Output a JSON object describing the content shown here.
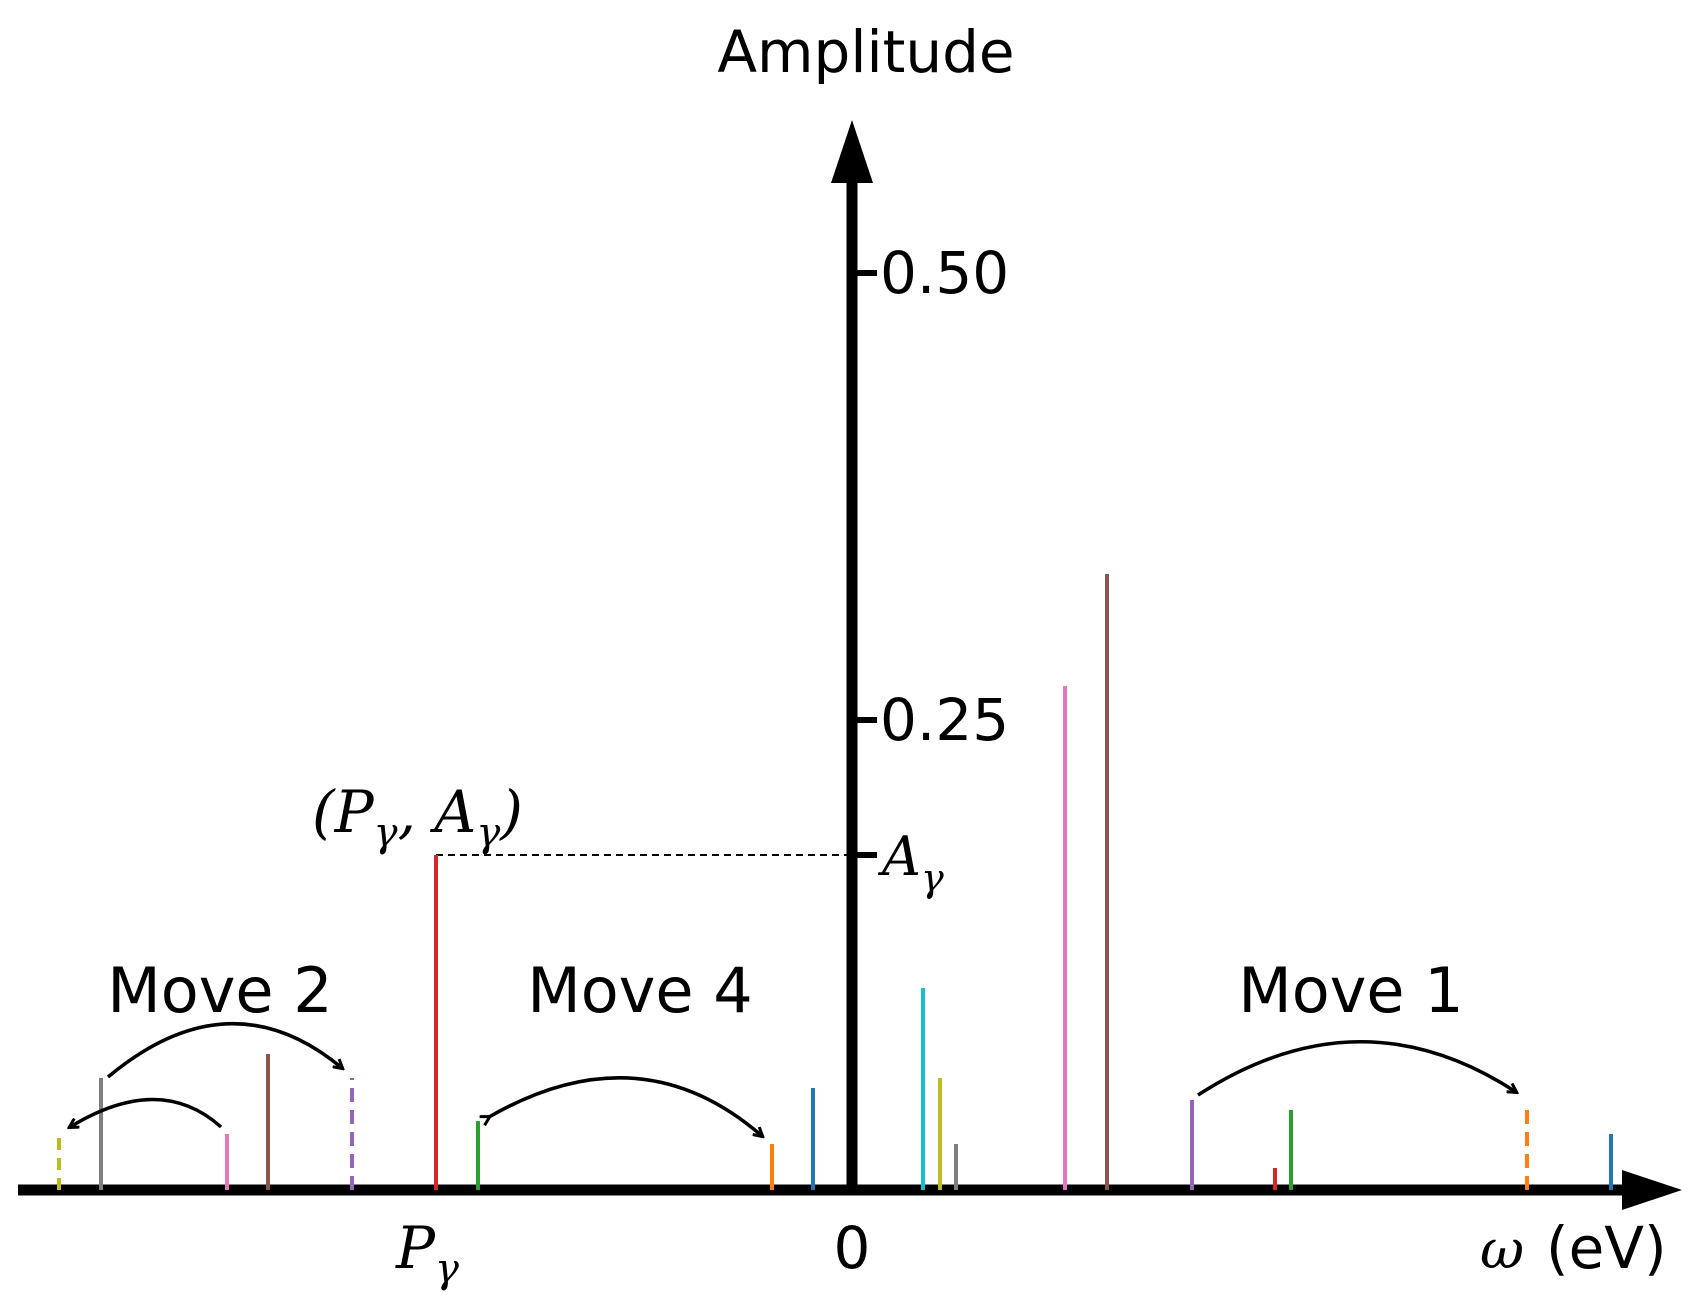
{
  "labels": {
    "y_axis_title": "Amplitude",
    "x_axis_title": "(eV)",
    "x_axis_symbol": "ω",
    "origin": "0",
    "tick_050": "0.50",
    "tick_025": "0.25",
    "a_gamma": "A",
    "a_gamma_sub": "γ",
    "p_gamma": "P",
    "p_gamma_sub": "γ",
    "point_open": "(P",
    "point_sub1": "γ",
    "point_mid": ", A",
    "point_sub2": "γ",
    "point_close": ")",
    "move1": "Move 1",
    "move2": "Move 2",
    "move4": "Move 4"
  },
  "colors": {
    "axis": "#000000",
    "red": "#d62728",
    "green": "#2ca02c",
    "orange": "#ff7f0e",
    "blue": "#1f77b4",
    "purple": "#9467bd",
    "pink": "#e377c2",
    "brown": "#8c564b",
    "gray": "#7f7f7f",
    "olive": "#bcbd22",
    "cyan": "#17becf"
  }
}
